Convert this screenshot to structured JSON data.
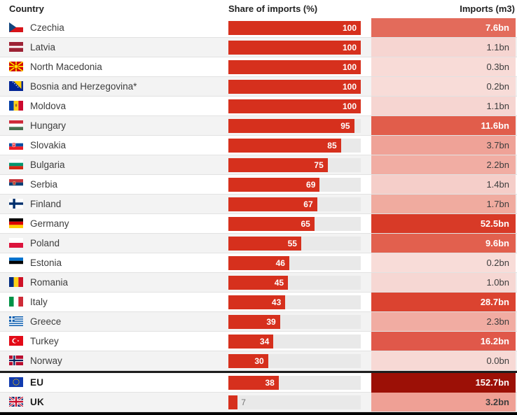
{
  "header": {
    "country": "Country",
    "share": "Share of imports (%)",
    "imports": "Imports (m3)"
  },
  "colors": {
    "bar": "#d6301d",
    "bar_track": "#e9e9e9",
    "stripe": "#f3f3f3",
    "separator": "#1d1d1d",
    "bottom_rule": "#000000"
  },
  "chart_data": {
    "type": "bar",
    "title": "",
    "columns": [
      "Country",
      "Share of imports (%)",
      "Imports (m3)"
    ],
    "share_axis_max": 100,
    "rows": [
      {
        "name": "Czechia",
        "flag": "czechia",
        "share": 100,
        "imports": "7.6bn",
        "cell_bg": "#e36b5b",
        "cell_fg": "#ffffff"
      },
      {
        "name": "Latvia",
        "flag": "latvia",
        "share": 100,
        "imports": "1.1bn",
        "cell_bg": "#f6d5d1",
        "cell_fg": "#3d3d3d"
      },
      {
        "name": "North Macedonia",
        "flag": "north-macedonia",
        "share": 100,
        "imports": "0.3bn",
        "cell_bg": "#f8dbd7",
        "cell_fg": "#3d3d3d"
      },
      {
        "name": "Bosnia and Herzegovina*",
        "flag": "bosnia-and-herzegovina",
        "share": 100,
        "imports": "0.2bn",
        "cell_bg": "#f8dcd8",
        "cell_fg": "#3d3d3d"
      },
      {
        "name": "Moldova",
        "flag": "moldova",
        "share": 100,
        "imports": "1.1bn",
        "cell_bg": "#f6d5d1",
        "cell_fg": "#3d3d3d"
      },
      {
        "name": "Hungary",
        "flag": "hungary",
        "share": 95,
        "imports": "11.6bn",
        "cell_bg": "#e15d4b",
        "cell_fg": "#ffffff"
      },
      {
        "name": "Slovakia",
        "flag": "slovakia",
        "share": 85,
        "imports": "3.7bn",
        "cell_bg": "#efa297",
        "cell_fg": "#3d3d3d"
      },
      {
        "name": "Bulgaria",
        "flag": "bulgaria",
        "share": 75,
        "imports": "2.2bn",
        "cell_bg": "#f1ada3",
        "cell_fg": "#3d3d3d"
      },
      {
        "name": "Serbia",
        "flag": "serbia",
        "share": 69,
        "imports": "1.4bn",
        "cell_bg": "#f5cec9",
        "cell_fg": "#3d3d3d"
      },
      {
        "name": "Finland",
        "flag": "finland",
        "share": 67,
        "imports": "1.7bn",
        "cell_bg": "#f0ab9f",
        "cell_fg": "#3d3d3d"
      },
      {
        "name": "Germany",
        "flag": "germany",
        "share": 65,
        "imports": "52.5bn",
        "cell_bg": "#d83a27",
        "cell_fg": "#ffffff"
      },
      {
        "name": "Poland",
        "flag": "poland",
        "share": 55,
        "imports": "9.6bn",
        "cell_bg": "#e2604e",
        "cell_fg": "#ffffff"
      },
      {
        "name": "Estonia",
        "flag": "estonia",
        "share": 46,
        "imports": "0.2bn",
        "cell_bg": "#f8dcd8",
        "cell_fg": "#3d3d3d"
      },
      {
        "name": "Romania",
        "flag": "romania",
        "share": 45,
        "imports": "1.0bn",
        "cell_bg": "#f6d7d3",
        "cell_fg": "#3d3d3d"
      },
      {
        "name": "Italy",
        "flag": "italy",
        "share": 43,
        "imports": "28.7bn",
        "cell_bg": "#db4330",
        "cell_fg": "#ffffff"
      },
      {
        "name": "Greece",
        "flag": "greece",
        "share": 39,
        "imports": "2.3bn",
        "cell_bg": "#f1aca2",
        "cell_fg": "#3d3d3d"
      },
      {
        "name": "Turkey",
        "flag": "turkey",
        "share": 34,
        "imports": "16.2bn",
        "cell_bg": "#e0584a",
        "cell_fg": "#ffffff"
      },
      {
        "name": "Norway",
        "flag": "norway",
        "share": 30,
        "imports": "0.0bn",
        "cell_bg": "#f7d9d5",
        "cell_fg": "#3d3d3d"
      },
      {
        "name": "EU",
        "flag": "eu",
        "share": 38,
        "imports": "152.7bn",
        "cell_bg": "#9c1006",
        "cell_fg": "#ffffff",
        "bold": true,
        "separator_before": true
      },
      {
        "name": "UK",
        "flag": "uk",
        "share": 7,
        "imports": "3.2bn",
        "cell_bg": "#efa095",
        "cell_fg": "#3d3d3d",
        "bold": true
      }
    ]
  }
}
